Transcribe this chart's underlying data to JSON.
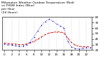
{
  "title": "Milwaukee Weather Outdoor Temperature (Red)\nvs THSW Index (Blue)\nper Hour\n(24 Hours)",
  "hours": [
    0,
    1,
    2,
    3,
    4,
    5,
    6,
    7,
    8,
    9,
    10,
    11,
    12,
    13,
    14,
    15,
    16,
    17,
    18,
    19,
    20,
    21,
    22,
    23
  ],
  "temp_red": [
    33,
    32,
    31,
    31,
    30,
    30,
    31,
    33,
    36,
    40,
    44,
    48,
    51,
    52,
    53,
    53,
    51,
    42,
    34,
    29,
    27,
    26,
    26,
    26
  ],
  "thsw_blue": [
    31,
    30,
    29,
    28,
    27,
    27,
    30,
    35,
    44,
    55,
    65,
    72,
    76,
    73,
    68,
    64,
    60,
    36,
    26,
    23,
    22,
    23,
    24,
    24
  ],
  "red_color": "#cc0000",
  "blue_color": "#0000cc",
  "bg_color": "#ffffff",
  "grid_color": "#bbbbbb",
  "ylim_min": 20,
  "ylim_max": 80,
  "yticks_right": [
    20,
    30,
    40,
    50,
    60,
    70,
    80
  ],
  "xtick_step": 2,
  "title_fontsize": 3.2,
  "tick_fontsize": 3.0,
  "line_width": 0.6,
  "marker_size": 1.5
}
